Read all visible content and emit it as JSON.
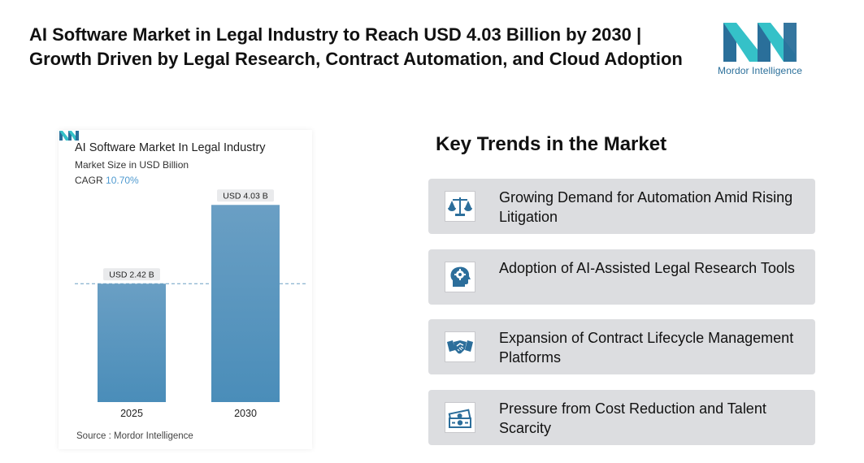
{
  "header": {
    "title": "AI Software Market in Legal Industry to Reach USD 4.03 Billion by 2030 | Growth Driven by Legal Research, Contract Automation, and Cloud Adoption",
    "logo_text": "Mordor Intelligence"
  },
  "chart": {
    "title": "AI Software Market In Legal Industry",
    "subtitle": "Market Size in USD Billion",
    "cagr_label": "CAGR",
    "cagr_value": "10.70%",
    "source": "Source : Mordor Intelligence"
  },
  "chart_data": {
    "type": "bar",
    "title": "AI Software Market In Legal Industry",
    "subtitle": "Market Size in USD Billion",
    "categories": [
      "2025",
      "2030"
    ],
    "values": [
      2.42,
      4.03
    ],
    "value_labels": [
      "USD 2.42 B",
      "USD 4.03 B"
    ],
    "ylim": [
      0,
      4.4
    ],
    "grid": false,
    "reference_line": 2.42,
    "colors": {
      "bar_top": "#6a9fc4",
      "bar_bottom": "#4a8db9"
    }
  },
  "trends": {
    "title": "Key Trends in the Market",
    "items": [
      {
        "label": "Growing Demand for Automation Amid Rising Litigation",
        "icon": "scales-icon"
      },
      {
        "label": "Adoption of AI-Assisted Legal Research Tools",
        "icon": "brain-gear-icon"
      },
      {
        "label": "Expansion of Contract Lifecycle Management Platforms",
        "icon": "handshake-icon"
      },
      {
        "label": "Pressure from Cost Reduction and Talent Scarcity",
        "icon": "money-icon"
      }
    ]
  },
  "colors": {
    "brand_teal": "#35c1c8",
    "brand_blue": "#2a6f9a",
    "trend_bg": "#dcdde0",
    "icon_blue": "#2c6e9b"
  }
}
